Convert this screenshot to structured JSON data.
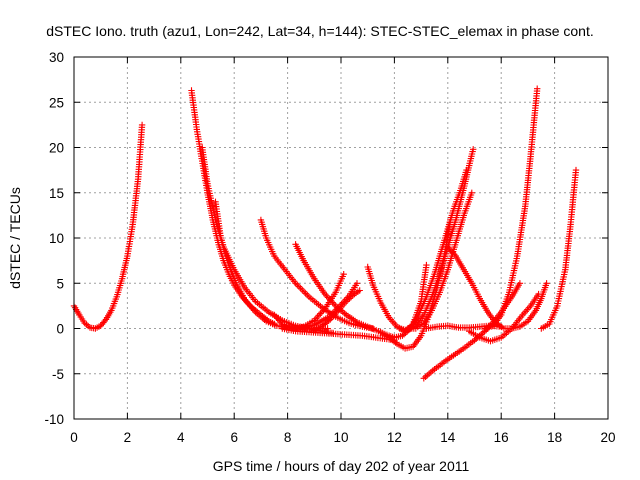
{
  "chart_data": {
    "type": "scatter",
    "title": "dSTEC Iono. truth (azu1, Lon=242, Lat=34, h=144): STEC-STEC_elemax in phase cont.",
    "xlabel": "GPS time / hours of day 202 of year 2011",
    "ylabel": "dSTEC  / TECUs",
    "xlim": [
      0,
      20
    ],
    "ylim": [
      -10,
      30
    ],
    "xticks": [
      0,
      2,
      4,
      6,
      8,
      10,
      12,
      14,
      16,
      18,
      20
    ],
    "yticks": [
      -10,
      -5,
      0,
      5,
      10,
      15,
      20,
      25,
      30
    ],
    "xtick_labels": [
      "0",
      "2",
      "4",
      "6",
      "8",
      "10",
      "12",
      "14",
      "16",
      "18",
      "20"
    ],
    "ytick_labels": [
      "-10",
      "-5",
      "0",
      "5",
      "10",
      "15",
      "20",
      "25",
      "30"
    ],
    "grid": true,
    "legend": "none",
    "marker": "plus",
    "color": "#ff0000",
    "series": [
      {
        "x": [
          0.0,
          0.2,
          0.4,
          0.6,
          0.8,
          1.0,
          1.2,
          1.4,
          1.6,
          1.8,
          2.0,
          2.2,
          2.4,
          2.55
        ],
        "values": [
          2.5,
          1.5,
          0.6,
          0.1,
          0.0,
          0.3,
          1.0,
          2.0,
          3.5,
          5.5,
          8.0,
          11.5,
          16.5,
          22.5
        ]
      },
      {
        "x": [
          4.4,
          4.6,
          4.8,
          5.0,
          5.2,
          5.4,
          5.6,
          5.8,
          6.0,
          6.3,
          6.6,
          7.0,
          7.3,
          7.5
        ],
        "values": [
          26.3,
          22.0,
          18.5,
          15.0,
          12.0,
          9.5,
          7.5,
          6.0,
          4.8,
          3.5,
          2.5,
          1.5,
          0.8,
          0.5
        ]
      },
      {
        "x": [
          5.3,
          5.5,
          5.8,
          6.1,
          6.4,
          6.8,
          7.2,
          7.6,
          8.0,
          8.5,
          9.0,
          9.5
        ],
        "values": [
          14.0,
          10.0,
          7.0,
          4.8,
          3.2,
          1.8,
          0.8,
          0.3,
          0.1,
          0.0,
          0.0,
          0.0
        ]
      },
      {
        "x": [
          4.8,
          5.0,
          5.3,
          5.6,
          6.0,
          6.4,
          6.8,
          7.3,
          7.8,
          8.3,
          8.8,
          9.3,
          9.7
        ],
        "values": [
          20.0,
          16.0,
          12.0,
          9.0,
          6.5,
          4.5,
          3.0,
          1.8,
          0.9,
          0.3,
          0.0,
          -0.3,
          -0.5
        ]
      },
      {
        "x": [
          7.0,
          7.2,
          7.5,
          7.9,
          8.3,
          8.8,
          9.3,
          9.8,
          10.3,
          10.8,
          11.2
        ],
        "values": [
          12.0,
          10.0,
          8.0,
          6.5,
          5.0,
          3.5,
          2.3,
          1.3,
          0.6,
          0.2,
          0.0
        ]
      },
      {
        "x": [
          8.3,
          8.6,
          9.0,
          9.4,
          9.8,
          10.2,
          10.6,
          11.0,
          11.4,
          11.8,
          12.0
        ],
        "values": [
          9.3,
          7.5,
          5.5,
          3.8,
          2.5,
          1.5,
          0.7,
          0.2,
          -0.3,
          -0.8,
          -1.0
        ]
      },
      {
        "x": [
          7.5,
          7.8,
          8.2,
          8.6,
          9.0,
          9.4,
          9.8,
          10.1
        ],
        "values": [
          1.5,
          0.5,
          0.0,
          0.2,
          0.9,
          2.2,
          4.0,
          6.0
        ]
      },
      {
        "x": [
          8.5,
          9.0,
          9.5,
          9.9,
          10.3,
          10.6
        ],
        "values": [
          0.0,
          0.4,
          1.2,
          2.3,
          3.6,
          5.0
        ]
      },
      {
        "x": [
          9.0,
          9.3,
          9.6,
          9.9,
          10.2,
          10.5,
          10.7
        ],
        "values": [
          -0.2,
          0.3,
          1.0,
          2.0,
          3.0,
          3.8,
          4.2
        ]
      },
      {
        "x": [
          7.8,
          8.3,
          8.8,
          9.3,
          9.8,
          10.3,
          10.8,
          11.3,
          11.8,
          12.0
        ],
        "values": [
          0.0,
          -0.3,
          -0.4,
          -0.5,
          -0.6,
          -0.7,
          -0.8,
          -1.0,
          -1.2,
          -1.3
        ]
      },
      {
        "x": [
          11.0,
          11.2,
          11.5,
          11.8,
          12.1,
          12.4,
          12.7,
          13.0,
          13.2
        ],
        "values": [
          6.8,
          4.8,
          2.8,
          1.2,
          0.2,
          -0.3,
          0.5,
          3.0,
          7.0
        ]
      },
      {
        "x": [
          11.5,
          11.8,
          12.1,
          12.4,
          12.7,
          13.0,
          13.3,
          13.6,
          13.9,
          14.1
        ],
        "values": [
          -0.5,
          -1.0,
          -1.7,
          -2.2,
          -2.0,
          -0.8,
          1.5,
          4.5,
          8.5,
          12.0
        ]
      },
      {
        "x": [
          12.2,
          12.5,
          12.8,
          13.1,
          13.4,
          13.7,
          14.0,
          14.3,
          14.6,
          14.8,
          14.95
        ],
        "values": [
          0.0,
          -0.2,
          0.3,
          1.5,
          3.5,
          6.0,
          9.0,
          12.0,
          15.5,
          18.0,
          19.8
        ]
      },
      {
        "x": [
          12.5,
          12.8,
          13.1,
          13.4,
          13.7,
          14.0,
          14.3,
          14.6,
          14.9
        ],
        "values": [
          0.0,
          0.0,
          0.6,
          2.0,
          4.0,
          6.5,
          9.5,
          12.5,
          15.0
        ]
      },
      {
        "x": [
          12.0,
          12.3,
          12.6,
          12.9,
          13.2,
          13.5,
          13.8,
          14.0,
          14.2,
          14.5,
          14.7
        ],
        "values": [
          -1.0,
          -0.8,
          0.0,
          1.5,
          3.5,
          6.0,
          9.0,
          11.0,
          13.0,
          15.5,
          17.5
        ]
      },
      {
        "x": [
          13.1,
          13.5,
          14.0,
          14.5,
          15.0,
          15.5,
          16.0,
          16.4,
          16.7
        ],
        "values": [
          -5.5,
          -4.5,
          -3.4,
          -2.4,
          -1.3,
          0.0,
          1.8,
          3.5,
          5.0
        ]
      },
      {
        "x": [
          13.2,
          13.6,
          14.0,
          14.4,
          14.8,
          15.2,
          15.6,
          16.0
        ],
        "values": [
          0.0,
          0.2,
          0.3,
          0.1,
          0.1,
          0.2,
          0.3,
          0.2
        ]
      },
      {
        "x": [
          14.0,
          14.3,
          14.6,
          14.9,
          15.2,
          15.5,
          15.8,
          16.1,
          16.4,
          16.7,
          17.0,
          17.3,
          17.5,
          17.7
        ],
        "values": [
          9.0,
          8.0,
          6.5,
          5.0,
          3.3,
          1.8,
          0.6,
          0.0,
          0.0,
          0.2,
          0.8,
          2.0,
          3.3,
          5.0
        ]
      },
      {
        "x": [
          14.8,
          15.2,
          15.6,
          16.0,
          16.4,
          16.8,
          17.1,
          17.4
        ],
        "values": [
          -0.3,
          -1.0,
          -1.4,
          -1.0,
          0.0,
          1.5,
          2.5,
          3.8
        ]
      },
      {
        "x": [
          15.4,
          15.7,
          16.0,
          16.3,
          16.6,
          16.9,
          17.1,
          17.35
        ],
        "values": [
          0.0,
          0.3,
          1.5,
          4.0,
          8.0,
          13.5,
          19.0,
          26.5
        ]
      },
      {
        "x": [
          17.5,
          17.8,
          18.1,
          18.4,
          18.6,
          18.8
        ],
        "values": [
          0.0,
          0.5,
          2.5,
          6.5,
          11.5,
          17.5
        ]
      }
    ]
  }
}
